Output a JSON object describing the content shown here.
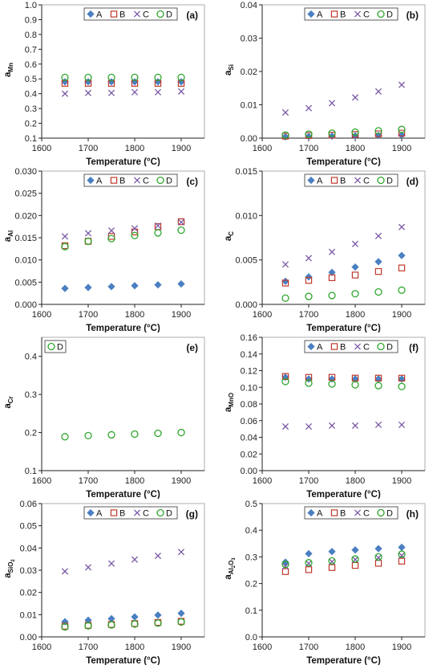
{
  "colors": {
    "A": "#4a7fc1",
    "B": "#c0392b",
    "C": "#7a5aa6",
    "D": "#2fa62f",
    "axis": "#222222",
    "frame": "#999999"
  },
  "markers": {
    "A": "diamond",
    "B": "open-square",
    "C": "x-cross",
    "D": "open-circle"
  },
  "chart_data": [
    {
      "type": "scatter",
      "panel": "(a)",
      "ylabel_main": "a",
      "ylabel_sub": "Mn",
      "xlabel": "Temperature (°C)",
      "xlim": [
        1600,
        1950
      ],
      "ylim": [
        0.1,
        1.0
      ],
      "xticks": [
        1600,
        1700,
        1800,
        1900
      ],
      "yticks": [
        0.1,
        0.2,
        0.3,
        0.4,
        0.5,
        0.6,
        0.7,
        0.8,
        0.9,
        1.0
      ],
      "ytick_labels": [
        "0.1",
        "0.2",
        "0.3",
        "0.4",
        "0.5",
        "0.6",
        "0.7",
        "0.8",
        "0.9",
        "1.0"
      ],
      "legend": [
        "A",
        "B",
        "C",
        "D"
      ],
      "x": [
        1650,
        1700,
        1750,
        1800,
        1850,
        1900
      ],
      "series": [
        {
          "name": "A",
          "values": [
            0.48,
            0.48,
            0.48,
            0.48,
            0.48,
            0.48
          ]
        },
        {
          "name": "B",
          "values": [
            0.47,
            0.47,
            0.47,
            0.47,
            0.47,
            0.47
          ]
        },
        {
          "name": "C",
          "values": [
            0.4,
            0.405,
            0.405,
            0.41,
            0.41,
            0.415
          ]
        },
        {
          "name": "D",
          "values": [
            0.51,
            0.51,
            0.51,
            0.51,
            0.51,
            0.51
          ]
        }
      ]
    },
    {
      "type": "scatter",
      "panel": "(b)",
      "ylabel_main": "a",
      "ylabel_sub": "Si",
      "xlabel": "Temperature (°C)",
      "xlim": [
        1600,
        1950
      ],
      "ylim": [
        0,
        0.04
      ],
      "xticks": [
        1600,
        1700,
        1800,
        1900
      ],
      "yticks": [
        0,
        0.01,
        0.02,
        0.03,
        0.04
      ],
      "ytick_labels": [
        "0.00",
        "0.01",
        "0.02",
        "0.03",
        "0.04"
      ],
      "legend": [
        "A",
        "B",
        "C",
        "D"
      ],
      "x": [
        1650,
        1700,
        1750,
        1800,
        1850,
        1900
      ],
      "series": [
        {
          "name": "A",
          "values": [
            0.0004,
            0.0005,
            0.0006,
            0.0007,
            0.0008,
            0.0009
          ]
        },
        {
          "name": "B",
          "values": [
            0.0006,
            0.0008,
            0.0009,
            0.0011,
            0.0013,
            0.0015
          ]
        },
        {
          "name": "C",
          "values": [
            0.0077,
            0.009,
            0.0105,
            0.0122,
            0.014,
            0.016
          ]
        },
        {
          "name": "D",
          "values": [
            0.0009,
            0.0012,
            0.0015,
            0.0018,
            0.0022,
            0.0026
          ]
        }
      ]
    },
    {
      "type": "scatter",
      "panel": "(c)",
      "ylabel_main": "a",
      "ylabel_sub": "Al",
      "xlabel": "Temperature (°C)",
      "xlim": [
        1600,
        1950
      ],
      "ylim": [
        0,
        0.03
      ],
      "xticks": [
        1600,
        1700,
        1800,
        1900
      ],
      "yticks": [
        0,
        0.005,
        0.01,
        0.015,
        0.02,
        0.025,
        0.03
      ],
      "ytick_labels": [
        "0.000",
        "0.005",
        "0.010",
        "0.015",
        "0.020",
        "0.025",
        "0.030"
      ],
      "legend": [
        "A",
        "B",
        "C",
        "D"
      ],
      "x": [
        1650,
        1700,
        1750,
        1800,
        1850,
        1900
      ],
      "series": [
        {
          "name": "A",
          "values": [
            0.0036,
            0.0038,
            0.004,
            0.0042,
            0.0044,
            0.0046
          ]
        },
        {
          "name": "B",
          "values": [
            0.0132,
            0.0142,
            0.0153,
            0.0163,
            0.0175,
            0.0186
          ]
        },
        {
          "name": "C",
          "values": [
            0.0153,
            0.016,
            0.0166,
            0.0171,
            0.0177,
            0.0185
          ]
        },
        {
          "name": "D",
          "values": [
            0.013,
            0.0142,
            0.0148,
            0.0155,
            0.0161,
            0.0167
          ]
        }
      ]
    },
    {
      "type": "scatter",
      "panel": "(d)",
      "ylabel_main": "a",
      "ylabel_sub": "C",
      "xlabel": "Temperature (°C)",
      "xlim": [
        1600,
        1950
      ],
      "ylim": [
        0,
        0.015
      ],
      "xticks": [
        1600,
        1700,
        1800,
        1900
      ],
      "yticks": [
        0,
        0.005,
        0.01,
        0.015
      ],
      "ytick_labels": [
        "0.000",
        "0.005",
        "0.010",
        "0.015"
      ],
      "legend": [
        "A",
        "B",
        "C",
        "D"
      ],
      "x": [
        1650,
        1700,
        1750,
        1800,
        1850,
        1900
      ],
      "series": [
        {
          "name": "A",
          "values": [
            0.0026,
            0.0031,
            0.0036,
            0.0042,
            0.0048,
            0.0055
          ]
        },
        {
          "name": "B",
          "values": [
            0.0024,
            0.0027,
            0.003,
            0.0033,
            0.0037,
            0.0041
          ]
        },
        {
          "name": "C",
          "values": [
            0.0045,
            0.0052,
            0.0059,
            0.0068,
            0.0077,
            0.0087
          ]
        },
        {
          "name": "D",
          "values": [
            0.0007,
            0.0009,
            0.001,
            0.0012,
            0.0014,
            0.0016
          ]
        }
      ]
    },
    {
      "type": "scatter",
      "panel": "(e)",
      "ylabel_main": "a",
      "ylabel_sub": "Cr",
      "xlabel": "Temperature (°C)",
      "xlim": [
        1600,
        1950
      ],
      "ylim": [
        0.1,
        0.45
      ],
      "xticks": [
        1600,
        1700,
        1800,
        1900
      ],
      "yticks": [
        0.1,
        0.2,
        0.3,
        0.4
      ],
      "ytick_labels": [
        "0.1",
        "0.2",
        "0.3",
        "0.4"
      ],
      "legend": [
        "D"
      ],
      "x": [
        1650,
        1700,
        1750,
        1800,
        1850,
        1900
      ],
      "series": [
        {
          "name": "D",
          "values": [
            0.189,
            0.192,
            0.194,
            0.196,
            0.198,
            0.2
          ]
        }
      ]
    },
    {
      "type": "scatter",
      "panel": "(f)",
      "ylabel_main": "a",
      "ylabel_sub": "MnO",
      "xlabel": "Temperature (°C)",
      "xlim": [
        1600,
        1950
      ],
      "ylim": [
        0,
        0.16
      ],
      "xticks": [
        1600,
        1700,
        1800,
        1900
      ],
      "yticks": [
        0,
        0.02,
        0.04,
        0.06,
        0.08,
        0.1,
        0.12,
        0.14,
        0.16
      ],
      "ytick_labels": [
        "0.00",
        "0.02",
        "0.04",
        "0.06",
        "0.08",
        "0.10",
        "0.12",
        "0.14",
        "0.16"
      ],
      "legend": [
        "A",
        "B",
        "C",
        "D"
      ],
      "x": [
        1650,
        1700,
        1750,
        1800,
        1850,
        1900
      ],
      "series": [
        {
          "name": "A",
          "values": [
            0.112,
            0.11,
            0.11,
            0.11,
            0.11,
            0.11
          ]
        },
        {
          "name": "B",
          "values": [
            0.113,
            0.112,
            0.112,
            0.111,
            0.111,
            0.111
          ]
        },
        {
          "name": "C",
          "values": [
            0.053,
            0.053,
            0.054,
            0.054,
            0.055,
            0.055
          ]
        },
        {
          "name": "D",
          "values": [
            0.107,
            0.105,
            0.104,
            0.103,
            0.102,
            0.101
          ]
        }
      ]
    },
    {
      "type": "scatter",
      "panel": "(g)",
      "ylabel_main": "a",
      "ylabel_sub": "SiO",
      "ylabel_sub2": "2",
      "xlabel": "Temperature (°C)",
      "xlim": [
        1600,
        1950
      ],
      "ylim": [
        0,
        0.06
      ],
      "xticks": [
        1600,
        1700,
        1800,
        1900
      ],
      "yticks": [
        0,
        0.01,
        0.02,
        0.03,
        0.04,
        0.05,
        0.06
      ],
      "ytick_labels": [
        "0.00",
        "0.01",
        "0.02",
        "0.03",
        "0.04",
        "0.05",
        "0.06"
      ],
      "legend": [
        "A",
        "B",
        "C",
        "D"
      ],
      "x": [
        1650,
        1700,
        1750,
        1800,
        1850,
        1900
      ],
      "series": [
        {
          "name": "A",
          "values": [
            0.0068,
            0.0075,
            0.0082,
            0.009,
            0.0098,
            0.0106
          ]
        },
        {
          "name": "B",
          "values": [
            0.0048,
            0.0052,
            0.0056,
            0.006,
            0.0065,
            0.007
          ]
        },
        {
          "name": "C",
          "values": [
            0.0295,
            0.0313,
            0.033,
            0.0348,
            0.0365,
            0.0382
          ]
        },
        {
          "name": "D",
          "values": [
            0.0045,
            0.005,
            0.0054,
            0.0058,
            0.0062,
            0.0067
          ]
        }
      ]
    },
    {
      "type": "scatter",
      "panel": "(h)",
      "ylabel_main": "a",
      "ylabel_sub": "Al",
      "ylabel_sub2": "2",
      "ylabel_sub3": "O",
      "ylabel_sub4": "3",
      "xlabel": "Temperature (°C)",
      "xlim": [
        1600,
        1950
      ],
      "ylim": [
        0,
        0.5
      ],
      "xticks": [
        1600,
        1700,
        1800,
        1900
      ],
      "yticks": [
        0,
        0.1,
        0.2,
        0.3,
        0.4,
        0.5
      ],
      "ytick_labels": [
        "0.0",
        "0.1",
        "0.2",
        "0.3",
        "0.4",
        "0.5"
      ],
      "legend": [
        "A",
        "B",
        "C",
        "D"
      ],
      "x": [
        1650,
        1700,
        1750,
        1800,
        1850,
        1900
      ],
      "series": [
        {
          "name": "A",
          "values": [
            0.28,
            0.312,
            0.32,
            0.326,
            0.331,
            0.336
          ]
        },
        {
          "name": "B",
          "values": [
            0.245,
            0.252,
            0.26,
            0.268,
            0.276,
            0.284
          ]
        },
        {
          "name": "C",
          "values": [
            0.265,
            0.275,
            0.282,
            0.29,
            0.297,
            0.305
          ]
        },
        {
          "name": "D",
          "values": [
            0.272,
            0.278,
            0.285,
            0.292,
            0.3,
            0.31
          ]
        }
      ]
    }
  ]
}
